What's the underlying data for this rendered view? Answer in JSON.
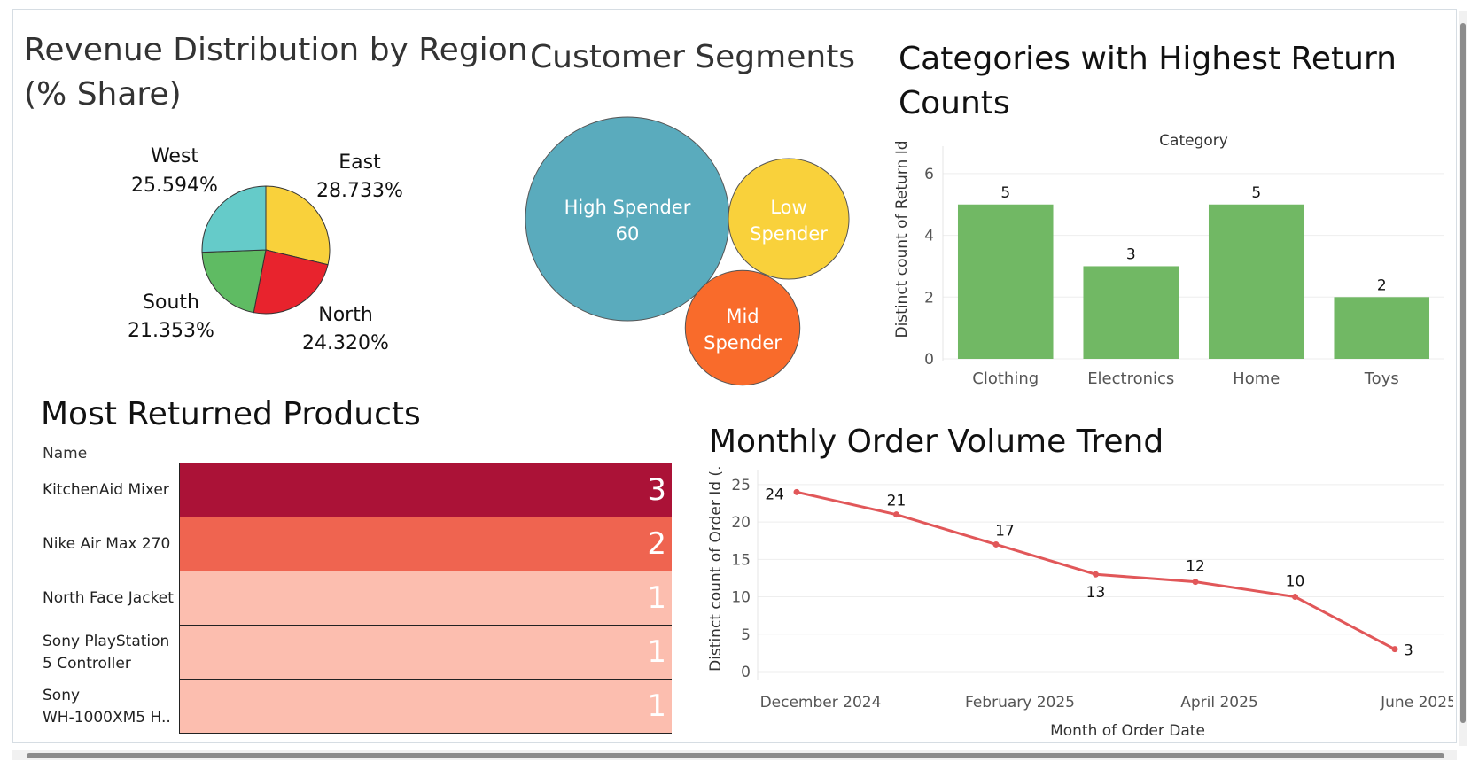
{
  "dashboard": {
    "pie_title_line1": "Revenue Distribution by Region",
    "pie_title_line2": "(% Share)",
    "bubble_title": "Customer Segments",
    "returns_title_line1": "Categories with Highest Return",
    "returns_title_line2": "Counts",
    "products_title": "Most Returned Products",
    "trend_title": "Monthly Order Volume Trend"
  },
  "products_table": {
    "column_header": "Name",
    "rows": [
      {
        "name_line1": "KitchenAid Mixer",
        "name_line2": "",
        "value": "3",
        "color": "#ab1237"
      },
      {
        "name_line1": "Nike Air Max 270",
        "name_line2": "",
        "value": "2",
        "color": "#ef6450"
      },
      {
        "name_line1": "North Face Jacket",
        "name_line2": "",
        "value": "1",
        "color": "#fcbeaf"
      },
      {
        "name_line1": "Sony PlayStation",
        "name_line2": "5 Controller",
        "value": "1",
        "color": "#fcbeaf"
      },
      {
        "name_line1": "Sony",
        "name_line2": "WH-1000XM5 H..",
        "value": "1",
        "color": "#fcbeaf"
      }
    ]
  },
  "chart_data": [
    {
      "type": "pie",
      "title": "Revenue Distribution by Region (% Share)",
      "slices": [
        {
          "label": "East",
          "value": 28.733,
          "display": "28.733%",
          "color": "#f9d13b"
        },
        {
          "label": "North",
          "value": 24.32,
          "display": "24.320%",
          "color": "#e8232d"
        },
        {
          "label": "South",
          "value": 21.353,
          "display": "21.353%",
          "color": "#5fbb63"
        },
        {
          "label": "West",
          "value": 25.594,
          "display": "25.594%",
          "color": "#65cbc9"
        }
      ]
    },
    {
      "type": "bubble",
      "title": "Customer Segments",
      "bubbles": [
        {
          "label_line1": "High Spender",
          "label_line2": "60",
          "value": 60,
          "color": "#5aabbd"
        },
        {
          "label_line1": "Low",
          "label_line2": "Spender",
          "value": 21,
          "color": "#f9d13b"
        },
        {
          "label_line1": "Mid",
          "label_line2": "Spender",
          "value": 19,
          "color": "#f96b2b"
        }
      ]
    },
    {
      "type": "bar",
      "title": "Categories with Highest Return Counts",
      "header": "Category",
      "ylabel": "Distinct count of Return Id",
      "categories": [
        "Clothing",
        "Electronics",
        "Home",
        "Toys"
      ],
      "values": [
        5,
        3,
        5,
        2
      ],
      "ylim": [
        0,
        6.6
      ],
      "yticks": [
        0,
        2,
        4,
        6
      ],
      "color": "#71b864"
    },
    {
      "type": "line",
      "title": "Monthly Order Volume Trend",
      "xlabel": "Month of Order Date",
      "ylabel": "Distinct count of Order Id (..",
      "x": [
        "2024-12",
        "2025-01",
        "2025-02",
        "2025-03",
        "2025-04",
        "2025-05",
        "2025-06"
      ],
      "values": [
        24,
        21,
        17,
        13,
        12,
        10,
        3
      ],
      "xtick_labels": [
        "December 2024",
        "February 2025",
        "April 2025",
        "June 2025"
      ],
      "xtick_months": [
        "2024-12",
        "2025-02",
        "2025-04",
        "2025-06"
      ],
      "ylim": [
        0,
        27
      ],
      "yticks": [
        0,
        5,
        10,
        15,
        20,
        25
      ],
      "color": "#e15759"
    }
  ]
}
